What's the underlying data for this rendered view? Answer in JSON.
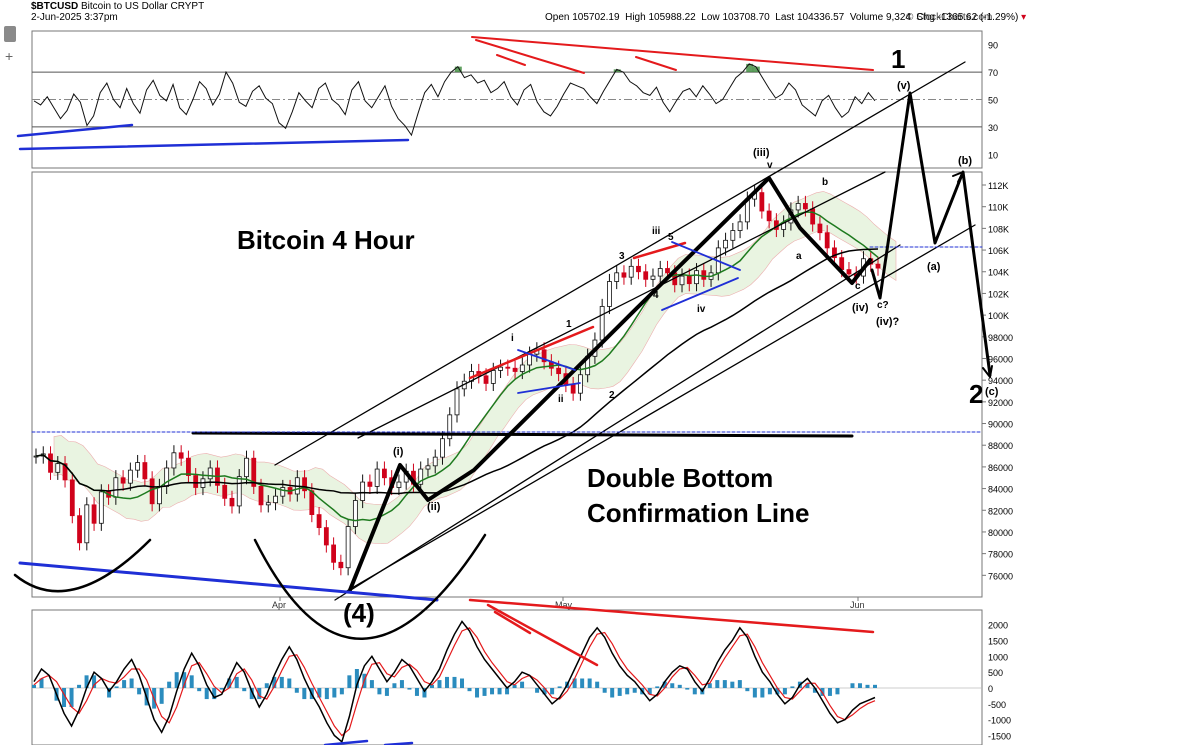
{
  "header": {
    "symbol": "$BTCUSD",
    "name": "Bitcoin to US Dollar",
    "exchange": "CRYPT",
    "date": "2-Jun-2025 3:37pm",
    "watermark": "© StockCharts.com",
    "quote": {
      "open_label": "Open",
      "open": "105702.19",
      "high_label": "High",
      "high": "105988.22",
      "low_label": "Low",
      "low": "103708.70",
      "last_label": "Last",
      "last": "104336.57",
      "volume_label": "Volume",
      "volume": "9,324",
      "chg_label": "Chg",
      "chg": "-1365.62 (-1.29%)"
    }
  },
  "toolbar": {
    "plus_icon": "+"
  },
  "chart_data": [
    {
      "type": "line",
      "panel": "rsi",
      "y_ticks": [
        90,
        70,
        50,
        30,
        10
      ],
      "ylim": [
        0,
        100
      ],
      "overbought": 70,
      "oversold": 30,
      "midline": 50,
      "values": [
        49,
        46,
        52,
        44,
        36,
        42,
        54,
        48,
        31,
        38,
        55,
        62,
        50,
        44,
        58,
        47,
        40,
        57,
        64,
        53,
        49,
        61,
        44,
        39,
        50,
        63,
        58,
        46,
        54,
        70,
        62,
        48,
        45,
        56,
        60,
        51,
        47,
        33,
        29,
        41,
        55,
        49,
        44,
        58,
        62,
        50,
        46,
        39,
        57,
        63,
        49,
        44,
        52,
        60,
        45,
        36,
        31,
        24,
        40,
        55,
        61,
        52,
        63,
        70,
        74,
        66,
        68,
        62,
        64,
        55,
        58,
        63,
        52,
        46,
        57,
        61,
        48,
        41,
        38,
        45,
        54,
        62,
        60,
        58,
        52,
        47,
        56,
        64,
        72,
        70,
        63,
        60,
        55,
        53,
        59,
        48,
        41,
        49,
        56,
        58,
        52,
        60,
        54,
        47,
        50,
        58,
        66,
        70,
        76,
        74,
        66,
        58,
        51,
        54,
        62,
        57,
        46,
        42,
        38,
        49,
        53,
        44,
        37,
        41,
        52,
        47,
        55,
        49
      ],
      "colors": {
        "line": "#111111",
        "overbought_fill": "#3a8a3a",
        "trend_red": "#e41a1c",
        "trend_blue": "#1f2fd6"
      }
    },
    {
      "type": "candlestick",
      "panel": "price",
      "title": "Bitcoin 4 Hour",
      "x_ticks": [
        "Apr",
        "May",
        "Jun"
      ],
      "y_ticks": [
        "112K",
        "110K",
        "108K",
        "106K",
        "104K",
        "102K",
        "100K",
        "98000",
        "96000",
        "94000",
        "92000",
        "90000",
        "88000",
        "86000",
        "84000",
        "82000",
        "80000",
        "78000",
        "76000"
      ],
      "ylim": [
        74000,
        113200
      ],
      "last": 104336.57,
      "close": [
        87000,
        87200,
        85500,
        86300,
        84800,
        81500,
        79000,
        82500,
        80800,
        83700,
        83200,
        85000,
        84500,
        85700,
        86400,
        84900,
        82600,
        84200,
        85900,
        87300,
        86800,
        85200,
        84100,
        84900,
        85900,
        84300,
        83100,
        82400,
        85100,
        86800,
        84200,
        82500,
        82700,
        83300,
        84100,
        83500,
        85000,
        83800,
        81600,
        80400,
        78800,
        77200,
        76700,
        80500,
        82900,
        84600,
        84200,
        85800,
        85000,
        84100,
        84600,
        85600,
        84400,
        85800,
        86100,
        86900,
        88600,
        90800,
        93200,
        93900,
        94800,
        94400,
        93700,
        94900,
        95200,
        95100,
        94800,
        95400,
        96400,
        96800,
        95700,
        95100,
        94600,
        93600,
        92800,
        94500,
        96200,
        97700,
        100800,
        103100,
        103900,
        103500,
        104500,
        104000,
        103300,
        103600,
        104300,
        103900,
        102800,
        103600,
        102900,
        104100,
        103300,
        103900,
        106200,
        106900,
        107800,
        108600,
        110700,
        111300,
        109600,
        108700,
        107900,
        108500,
        109700,
        110300,
        109800,
        108400,
        107600,
        106200,
        105300,
        104200,
        103800,
        103600,
        105200,
        104700,
        104336
      ],
      "ichimoku_cloud": "light green/pink",
      "annotations": {
        "wave_major": [
          "1",
          "2",
          "(4)"
        ],
        "wave_minor": [
          "(i)",
          "(ii)",
          "(iii)",
          "(iv)",
          "(iv)?",
          "(v)",
          "(a)",
          "(b)",
          "(c)"
        ],
        "wave_sub": [
          "i",
          "ii",
          "iii",
          "iv",
          "v",
          "1",
          "2",
          "3",
          "4",
          "5",
          "a",
          "b",
          "c",
          "c?"
        ],
        "confirmation_line": "Double Bottom Confirmation Line",
        "confirmation_level": 88600
      },
      "colors": {
        "up": "#111111",
        "down": "#d0021b",
        "sma_green": "#1e7a1e",
        "sma_black": "#000000",
        "dotted_blue": "#1f2fd6"
      }
    },
    {
      "type": "line",
      "panel": "macd",
      "y_ticks": [
        "2000",
        "1500",
        "1000",
        "500",
        "0",
        "-500",
        "-1000",
        "-1500"
      ],
      "ylim": [
        -1800,
        2400
      ],
      "macd": [
        200,
        600,
        400,
        -200,
        -800,
        -1200,
        -700,
        0,
        500,
        300,
        -100,
        200,
        600,
        900,
        400,
        -300,
        -1000,
        -1400,
        -900,
        -100,
        600,
        1100,
        700,
        100,
        -300,
        -200,
        300,
        800,
        500,
        -100,
        -600,
        -200,
        400,
        900,
        1300,
        900,
        300,
        -200,
        -600,
        -1100,
        -1500,
        -1700,
        -900,
        100,
        700,
        1000,
        600,
        200,
        500,
        900,
        700,
        300,
        -100,
        200,
        600,
        1200,
        1700,
        2100,
        1800,
        1300,
        900,
        600,
        300,
        0,
        200,
        500,
        400,
        100,
        -200,
        -500,
        -300,
        100,
        600,
        1100,
        1600,
        1900,
        1600,
        1100,
        700,
        400,
        200,
        -100,
        -400,
        -200,
        200,
        500,
        700,
        600,
        200,
        -100,
        300,
        800,
        1200,
        1500,
        1900,
        1600,
        1000,
        500,
        200,
        -200,
        -500,
        -300,
        100,
        300,
        0,
        -400,
        -800,
        -1100,
        -1000,
        -700,
        -500,
        -400,
        -300
      ],
      "signal": [
        100,
        300,
        400,
        200,
        -200,
        -600,
        -800,
        -400,
        100,
        300,
        200,
        150,
        350,
        600,
        600,
        250,
        -350,
        -900,
        -1100,
        -600,
        100,
        700,
        800,
        450,
        50,
        -150,
        0,
        450,
        600,
        250,
        -250,
        -350,
        50,
        550,
        1000,
        1050,
        650,
        150,
        -300,
        -750,
        -1200,
        -1500,
        -1300,
        -500,
        250,
        750,
        800,
        450,
        350,
        650,
        750,
        550,
        200,
        100,
        350,
        850,
        1350,
        1800,
        1900,
        1600,
        1150,
        800,
        500,
        200,
        100,
        300,
        400,
        250,
        0,
        -300,
        -350,
        -100,
        300,
        800,
        1300,
        1700,
        1750,
        1400,
        950,
        600,
        350,
        100,
        -200,
        -250,
        0,
        350,
        600,
        650,
        400,
        100,
        150,
        550,
        950,
        1300,
        1650,
        1700,
        1300,
        800,
        400,
        0,
        -300,
        -350,
        -100,
        150,
        150,
        -150,
        -550,
        -900,
        -1000,
        -850,
        -650,
        -500,
        -400
      ],
      "colors": {
        "macd": "#000000",
        "signal": "#e41a1c",
        "histogram": "#2b8cbe"
      }
    }
  ]
}
